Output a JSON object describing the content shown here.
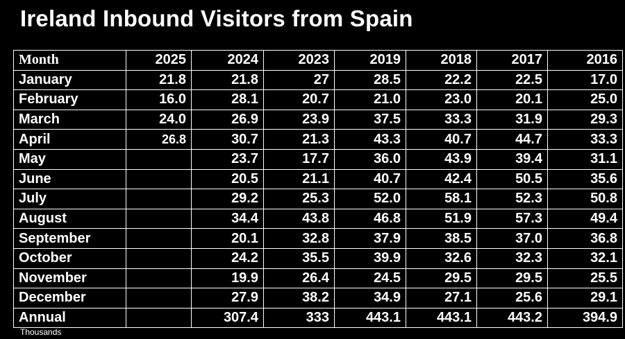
{
  "title": "Ireland Inbound Visitors from Spain",
  "footnote": "Thousands",
  "chart_data": {
    "type": "table",
    "title": "Ireland Inbound Visitors from Spain",
    "unit": "Thousands",
    "columns": [
      "Month",
      "2025",
      "2024",
      "2023",
      "2019",
      "2018",
      "2017",
      "2016"
    ],
    "rows": [
      [
        "January",
        "21.8",
        "21.8",
        "27",
        "28.5",
        "22.2",
        "22.5",
        "17.0"
      ],
      [
        "February",
        "16.0",
        "28.1",
        "20.7",
        "21.0",
        "23.0",
        "20.1",
        "25.0"
      ],
      [
        "March",
        "24.0",
        "26.9",
        "23.9",
        "37.5",
        "33.3",
        "31.9",
        "29.3"
      ],
      [
        "April",
        "26.8",
        "30.7",
        "21.3",
        "43.3",
        "40.7",
        "44.7",
        "33.3"
      ],
      [
        "May",
        "",
        "23.7",
        "17.7",
        "36.0",
        "43.9",
        "39.4",
        "31.1"
      ],
      [
        "June",
        "",
        "20.5",
        "21.1",
        "40.7",
        "42.4",
        "50.5",
        "35.6"
      ],
      [
        "July",
        "",
        "29.2",
        "25.3",
        "52.0",
        "58.1",
        "52.3",
        "50.8"
      ],
      [
        "August",
        "",
        "34.4",
        "43.8",
        "46.8",
        "51.9",
        "57.3",
        "49.4"
      ],
      [
        "September",
        "",
        "20.1",
        "32.8",
        "37.9",
        "38.5",
        "37.0",
        "36.8"
      ],
      [
        "October",
        "",
        "24.2",
        "35.5",
        "39.9",
        "32.6",
        "32.3",
        "32.1"
      ],
      [
        "November",
        "",
        "19.9",
        "26.4",
        "24.5",
        "29.5",
        "29.5",
        "25.5"
      ],
      [
        "December",
        "",
        "27.9",
        "38.2",
        "34.9",
        "27.1",
        "25.6",
        "29.1"
      ],
      [
        "Annual",
        "",
        "307.4",
        "333",
        "443.1",
        "443.1",
        "443.2",
        "394.9"
      ]
    ]
  }
}
